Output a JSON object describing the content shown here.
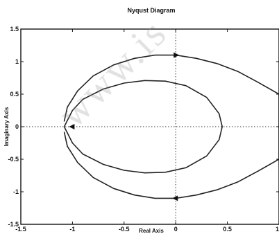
{
  "chart_data": {
    "type": "line",
    "title": "Nyqust Diagram",
    "xlabel": "Real Axis",
    "ylabel": "Imaginary Axis",
    "xlim": [
      -1.5,
      1
    ],
    "ylim": [
      -1.5,
      1.5
    ],
    "xticks": [
      -1.5,
      -1,
      -0.5,
      0,
      0.5,
      1
    ],
    "yticks": [
      -1.5,
      -1,
      -0.5,
      0,
      0.5,
      1,
      1.5
    ],
    "xtick_labels": [
      "-1.5",
      "-1",
      "-0.5",
      "0",
      "0.5",
      "1"
    ],
    "ytick_labels": [
      "-1.5",
      "-1",
      "-0.5",
      "0",
      "0.5",
      "1",
      "1.5"
    ],
    "grid": false,
    "zero_lines": true,
    "series": [
      {
        "x": [
          -1.08,
          -1.05,
          -0.95,
          -0.8,
          -0.6,
          -0.4,
          -0.2,
          0,
          0.2,
          0.4,
          0.6,
          0.8,
          1.0,
          1.0,
          0.8,
          0.6,
          0.4,
          0.2,
          0,
          -0.2,
          -0.4,
          -0.6,
          -0.8,
          -0.95,
          -1.05,
          -1.08
        ],
        "y": [
          0.08,
          0.3,
          0.55,
          0.78,
          0.95,
          1.05,
          1.1,
          1.1,
          1.05,
          0.97,
          0.85,
          0.68,
          0.5,
          -0.5,
          -0.68,
          -0.85,
          -0.97,
          -1.05,
          -1.1,
          -1.1,
          -1.05,
          -0.95,
          -0.78,
          -0.55,
          -0.3,
          -0.08
        ],
        "color": "#222222"
      },
      {
        "x": [
          -1.08,
          -1.0,
          -0.9,
          -0.7,
          -0.5,
          -0.3,
          -0.1,
          0.1,
          0.3,
          0.42,
          0.45,
          0.42,
          0.3,
          0.1,
          -0.1,
          -0.3,
          -0.5,
          -0.7,
          -0.9,
          -1.0,
          -1.08
        ],
        "y": [
          0,
          0.25,
          0.42,
          0.58,
          0.67,
          0.71,
          0.7,
          0.63,
          0.45,
          0.2,
          0,
          -0.2,
          -0.45,
          -0.63,
          -0.7,
          -0.71,
          -0.67,
          -0.58,
          -0.42,
          -0.25,
          0
        ],
        "color": "#222222"
      }
    ],
    "markers": [
      {
        "x": 0,
        "y": 1.1,
        "direction": "right"
      },
      {
        "x": 0,
        "y": -1.1,
        "direction": "left"
      },
      {
        "x": -1.0,
        "y": 0,
        "direction": "left"
      }
    ],
    "critical_point": {
      "x": -1,
      "y": 0
    }
  },
  "watermark": "www.is"
}
